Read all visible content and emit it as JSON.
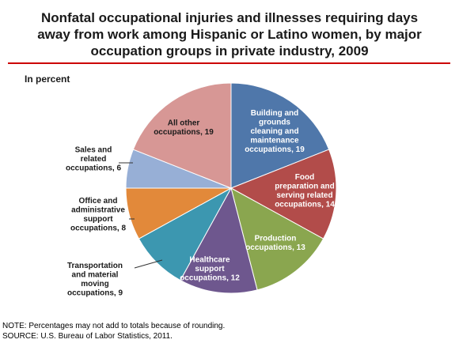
{
  "title_lines": [
    "Nonfatal occupational injuries and illnesses requiring days",
    "away from work among Hispanic or Latino women, by major",
    "occupation groups in private industry, 2009"
  ],
  "subtitle": "In percent",
  "note": "NOTE:  Percentages may not add to totals because of rounding.",
  "source": "SOURCE:  U.S. Bureau of Labor Statistics, 2011.",
  "chart_data": {
    "type": "pie",
    "unit": "percent",
    "start": "12 o'clock, clockwise",
    "slices": [
      {
        "label": "Building and grounds cleaning and maintenance occupations, 19",
        "lines": [
          "Building and",
          "grounds",
          "cleaning and",
          "maintenance",
          "occupations, 19"
        ],
        "value": 19,
        "color": "#4f77aa"
      },
      {
        "label": "Food preparation and serving related occupations, 14",
        "lines": [
          "Food",
          "preparation and",
          "serving related",
          "occupations, 14"
        ],
        "value": 14,
        "color": "#b24c4a"
      },
      {
        "label": "Production occupations, 13",
        "lines": [
          "Production",
          "occupations, 13"
        ],
        "value": 13,
        "color": "#8aa64f"
      },
      {
        "label": "Healthcare support occupations, 12",
        "lines": [
          "Healthcare",
          "support",
          "occupations, 12"
        ],
        "value": 12,
        "color": "#6e578e"
      },
      {
        "label": "Transportation and material moving occupations, 9",
        "lines": [
          "Transportation",
          "and material",
          "moving",
          "occupations, 9"
        ],
        "value": 9,
        "color": "#3c97b0"
      },
      {
        "label": "Office and administrative support occupations, 8",
        "lines": [
          "Office and",
          "administrative",
          "support",
          "occupations, 8"
        ],
        "value": 8,
        "color": "#e2893a"
      },
      {
        "label": "Sales and related occupations, 6",
        "lines": [
          "Sales and",
          "related",
          "occupations, 6"
        ],
        "value": 6,
        "color": "#97afd6"
      },
      {
        "label": "All other occupations, 19",
        "lines": [
          "All other",
          "occupations, 19"
        ],
        "value": 19,
        "color": "#d79795"
      }
    ]
  }
}
